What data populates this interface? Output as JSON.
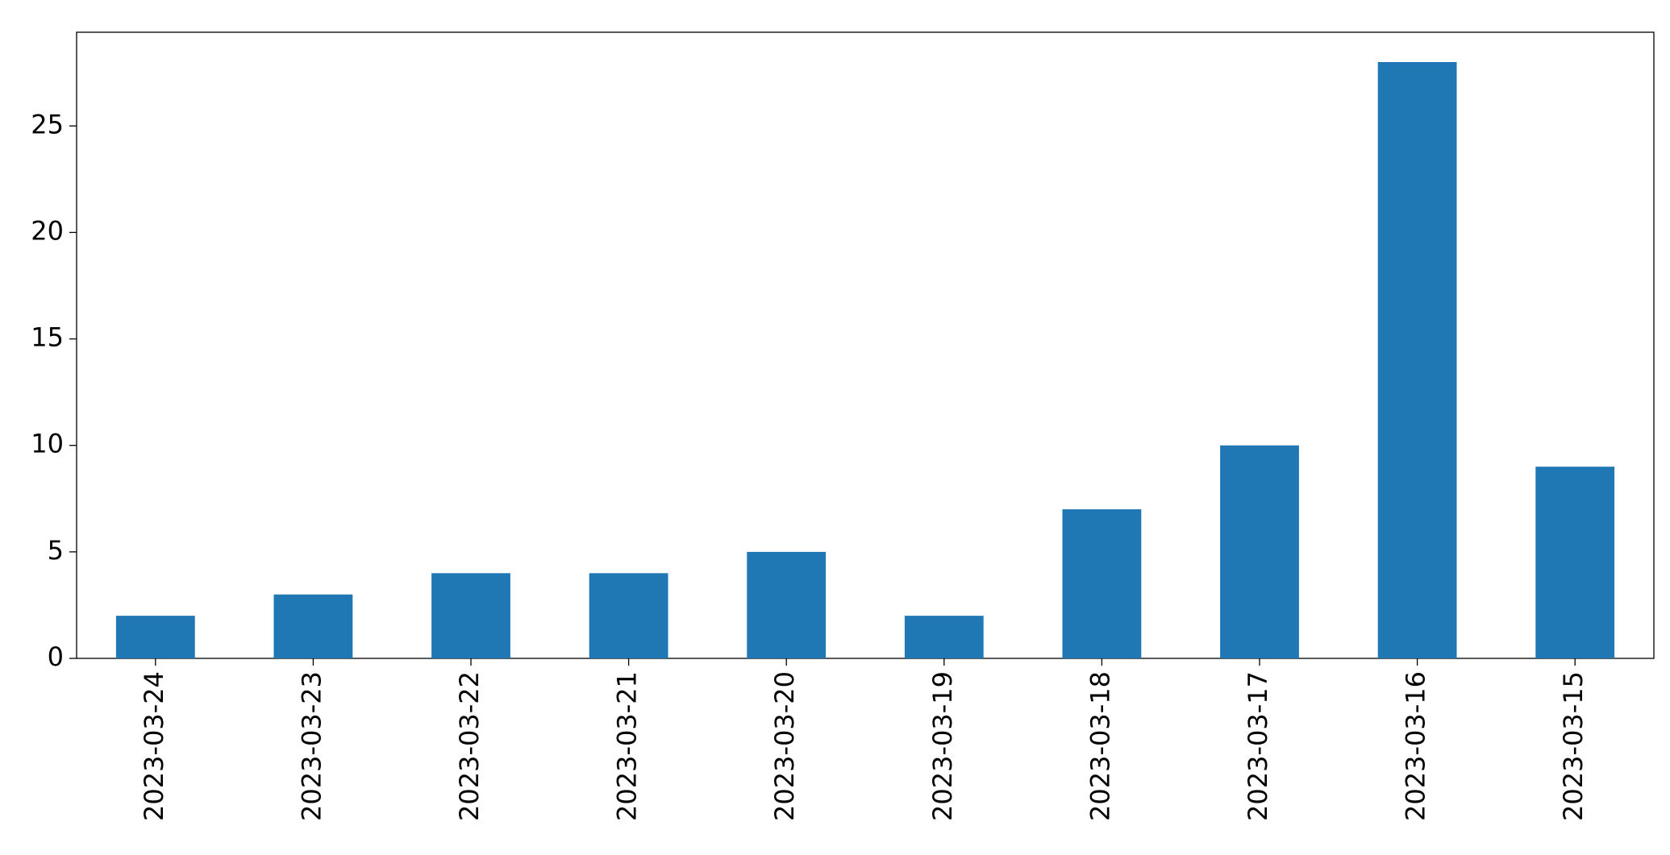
{
  "chart_data": {
    "type": "bar",
    "categories": [
      "2023-03-24",
      "2023-03-23",
      "2023-03-22",
      "2023-03-21",
      "2023-03-20",
      "2023-03-19",
      "2023-03-18",
      "2023-03-17",
      "2023-03-16",
      "2023-03-15"
    ],
    "values": [
      2,
      3,
      4,
      4,
      5,
      2,
      7,
      10,
      28,
      9
    ],
    "color": "#1f77b4",
    "ylim": [
      0,
      29.4
    ],
    "yticks": [
      0,
      5,
      10,
      15,
      20,
      25
    ],
    "grid": false
  }
}
